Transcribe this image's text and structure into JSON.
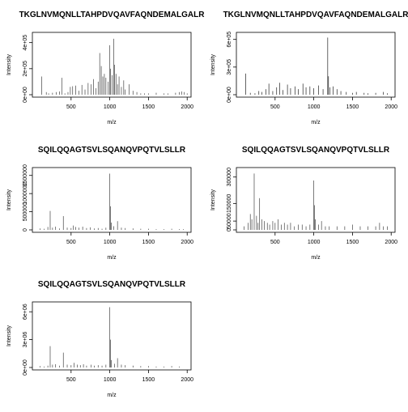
{
  "chart_data": [
    {
      "type": "bar",
      "title": "TKGLNVMQNLLTAHPDVQAVFAQNDEMALGALR",
      "xlabel": "m/z",
      "ylabel": "Intensity",
      "xlim": [
        0,
        2050
      ],
      "ylim": [
        0,
        460000
      ],
      "xticks": [
        500,
        1000,
        1500,
        2000
      ],
      "xtick_labels": [
        "500",
        "1000",
        "1500",
        "2000"
      ],
      "yticks": [
        0,
        200000,
        400000
      ],
      "ytick_labels": [
        "0e+00",
        "2e+05",
        "4e+05"
      ],
      "series": [
        {
          "color": "#444444",
          "x": [
            120,
            180,
            210,
            260,
            310,
            350,
            380,
            420,
            460,
            490,
            520,
            560,
            600,
            640,
            680,
            720,
            760,
            790,
            820,
            850,
            870,
            890,
            910,
            930,
            950,
            980,
            1000,
            1010,
            1030,
            1050,
            1060,
            1080,
            1100,
            1120,
            1150,
            1180,
            1200,
            1250,
            1300,
            1350,
            1400,
            1450,
            1500,
            1600,
            1700,
            1750,
            1850,
            1900,
            1930,
            1960,
            2000
          ],
          "y": [
            140000,
            20000,
            10000,
            15000,
            20000,
            25000,
            130000,
            10000,
            20000,
            60000,
            65000,
            70000,
            30000,
            75000,
            40000,
            90000,
            80000,
            120000,
            50000,
            100000,
            320000,
            220000,
            140000,
            160000,
            130000,
            100000,
            380000,
            200000,
            150000,
            430000,
            230000,
            160000,
            80000,
            140000,
            60000,
            110000,
            40000,
            80000,
            30000,
            20000,
            10000,
            10000,
            10000,
            15000,
            10000,
            10000,
            15000,
            20000,
            25000,
            20000,
            10000
          ]
        }
      ]
    },
    {
      "type": "bar",
      "title": "TKGLNVMQNLLTAHPDVQAVFAQNDEMALGALR",
      "xlabel": "m/z",
      "ylabel": "Intensity",
      "xlim": [
        0,
        2050
      ],
      "ylim": [
        0,
        650000
      ],
      "xticks": [
        500,
        1000,
        1500,
        2000
      ],
      "xtick_labels": [
        "500",
        "1000",
        "1500",
        "2000"
      ],
      "yticks": [
        0,
        300000,
        600000
      ],
      "ytick_labels": [
        "0e+00",
        "3e+05",
        "6e+05"
      ],
      "series": [
        {
          "color": "#222222",
          "x": [
            120,
            180,
            240,
            290,
            330,
            380,
            420,
            470,
            520,
            560,
            600,
            660,
            700,
            760,
            800,
            860,
            900,
            950,
            1000,
            1060,
            1120,
            1180,
            1190,
            1210,
            1250,
            1300,
            1350,
            1420,
            1500,
            1550,
            1650,
            1700,
            1800,
            1900,
            1950
          ],
          "y": [
            230000,
            20000,
            15000,
            40000,
            30000,
            60000,
            120000,
            40000,
            80000,
            130000,
            50000,
            110000,
            70000,
            90000,
            60000,
            120000,
            80000,
            90000,
            70000,
            100000,
            60000,
            620000,
            200000,
            80000,
            90000,
            60000,
            40000,
            30000,
            20000,
            30000,
            20000,
            15000,
            20000,
            30000,
            15000
          ]
        }
      ]
    },
    {
      "type": "bar",
      "title": "SQILQQAGTSVLSQANQVPQTVLSLLR",
      "xlabel": "m/z",
      "ylabel": "Intensity",
      "xlim": [
        0,
        2050
      ],
      "ylim": [
        0,
        1650000
      ],
      "xticks": [
        500,
        1000,
        1500,
        2000
      ],
      "xtick_labels": [
        "500",
        "1000",
        "1500",
        "2000"
      ],
      "yticks": [
        0,
        500000,
        1000000,
        1500000
      ],
      "ytick_labels": [
        "0",
        "500000",
        "1000000",
        "1500000"
      ],
      "series": [
        {
          "color": "#444444",
          "x": [
            100,
            150,
            200,
            230,
            260,
            300,
            350,
            400,
            450,
            500,
            530,
            560,
            600,
            650,
            700,
            750,
            800,
            850,
            900,
            950,
            1000,
            1010,
            1020,
            1050,
            1100,
            1150,
            1200,
            1300,
            1400,
            1500,
            1600,
            1700,
            1800,
            1900,
            1950
          ],
          "y": [
            40000,
            30000,
            80000,
            520000,
            60000,
            90000,
            40000,
            380000,
            60000,
            50000,
            120000,
            80000,
            60000,
            90000,
            50000,
            70000,
            40000,
            50000,
            30000,
            60000,
            1550000,
            650000,
            200000,
            100000,
            240000,
            60000,
            50000,
            40000,
            30000,
            30000,
            20000,
            20000,
            30000,
            20000,
            20000
          ]
        }
      ]
    },
    {
      "type": "bar",
      "title": "SQILQQAGTSVLSQANQVPQTVLSLLR",
      "xlabel": "m/z",
      "ylabel": "Intensity",
      "xlim": [
        0,
        2050
      ],
      "ylim": [
        0,
        340000
      ],
      "xticks": [
        500,
        1000,
        1500,
        2000
      ],
      "xtick_labels": [
        "500",
        "1000",
        "1500",
        "2000"
      ],
      "yticks": [
        0,
        50000,
        150000,
        300000
      ],
      "ytick_labels": [
        "0",
        "50000",
        "150000",
        "300000"
      ],
      "series": [
        {
          "color": "#444444",
          "x": [
            100,
            150,
            180,
            200,
            230,
            260,
            280,
            300,
            330,
            360,
            400,
            430,
            470,
            500,
            540,
            580,
            620,
            660,
            700,
            750,
            800,
            850,
            900,
            950,
            1000,
            1010,
            1020,
            1060,
            1100,
            1150,
            1200,
            1300,
            1400,
            1500,
            1600,
            1700,
            1800,
            1850,
            1900,
            1950
          ],
          "y": [
            20000,
            40000,
            90000,
            60000,
            320000,
            80000,
            40000,
            180000,
            60000,
            50000,
            40000,
            30000,
            50000,
            40000,
            60000,
            30000,
            40000,
            30000,
            40000,
            20000,
            30000,
            30000,
            20000,
            30000,
            280000,
            140000,
            60000,
            30000,
            50000,
            20000,
            20000,
            20000,
            20000,
            30000,
            20000,
            20000,
            20000,
            40000,
            20000,
            20000
          ]
        }
      ]
    },
    {
      "type": "bar",
      "title": "SQILQQAGTSVLSQANQVPQTVLSLLR",
      "xlabel": "m/z",
      "ylabel": "Intensity",
      "xlim": [
        0,
        2050
      ],
      "ylim": [
        0,
        6800000
      ],
      "xticks": [
        500,
        1000,
        1500,
        2000
      ],
      "xtick_labels": [
        "500",
        "1000",
        "1500",
        "2000"
      ],
      "yticks": [
        0,
        3000000,
        6000000
      ],
      "ytick_labels": [
        "0e+00",
        "3e+06",
        "6e+06"
      ],
      "series": [
        {
          "color": "#444444",
          "x": [
            100,
            150,
            200,
            230,
            260,
            300,
            350,
            400,
            450,
            500,
            540,
            580,
            620,
            660,
            700,
            760,
            800,
            850,
            900,
            950,
            1000,
            1010,
            1020,
            1060,
            1100,
            1150,
            1200,
            1300,
            1400,
            1500,
            1600,
            1700,
            1800,
            1900
          ],
          "y": [
            150000,
            100000,
            200000,
            2300000,
            300000,
            350000,
            200000,
            1600000,
            300000,
            250000,
            500000,
            300000,
            250000,
            350000,
            200000,
            300000,
            200000,
            250000,
            200000,
            300000,
            6500000,
            3000000,
            800000,
            400000,
            1000000,
            300000,
            250000,
            200000,
            150000,
            150000,
            100000,
            100000,
            150000,
            100000
          ]
        }
      ]
    }
  ]
}
